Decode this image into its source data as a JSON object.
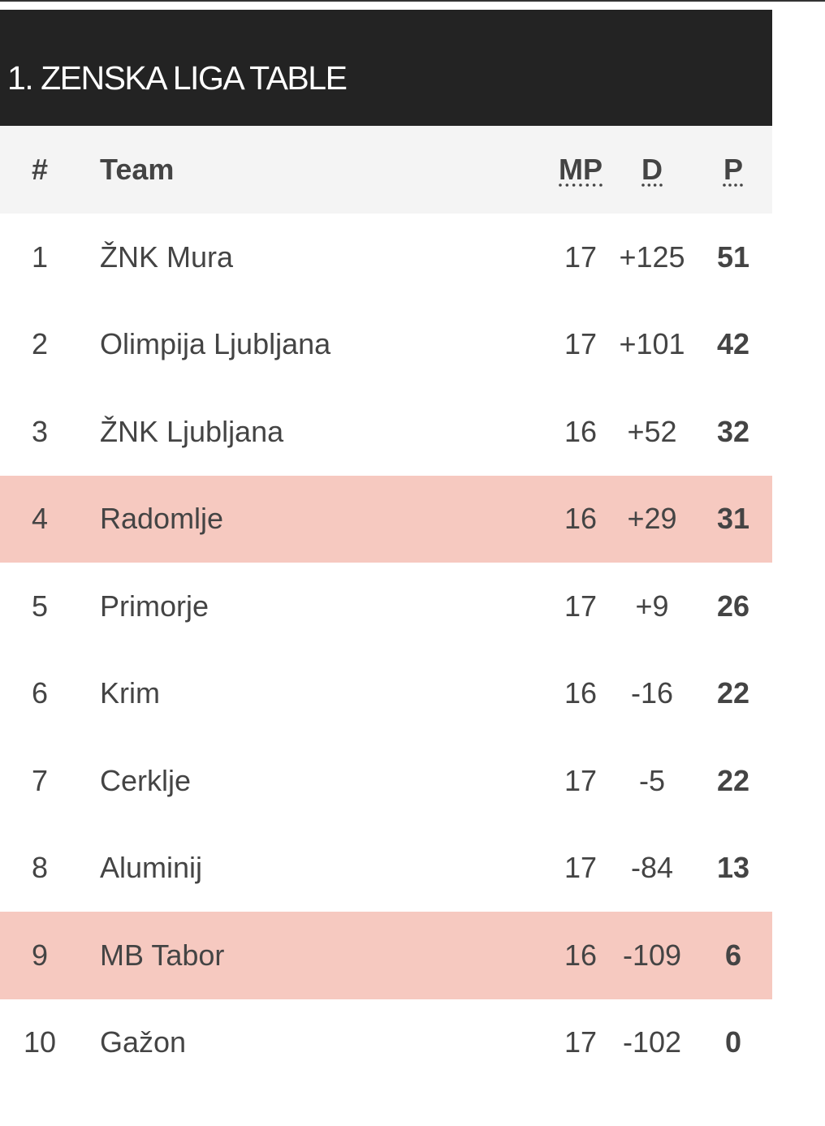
{
  "title": "1. ZENSKA LIGA TABLE",
  "colors": {
    "header_bg": "#232323",
    "column_header_bg": "#f4f4f4",
    "highlight_row": "#f6c9c0",
    "text": "#444444"
  },
  "columns": {
    "pos": "#",
    "team": "Team",
    "mp": "MP",
    "d": "D",
    "p": "P"
  },
  "rows": [
    {
      "pos": "1",
      "team": "ŽNK Mura",
      "mp": "17",
      "d": "+125",
      "p": "51",
      "highlighted": false
    },
    {
      "pos": "2",
      "team": "Olimpija Ljubljana",
      "mp": "17",
      "d": "+101",
      "p": "42",
      "highlighted": false
    },
    {
      "pos": "3",
      "team": "ŽNK Ljubljana",
      "mp": "16",
      "d": "+52",
      "p": "32",
      "highlighted": false
    },
    {
      "pos": "4",
      "team": "Radomlje",
      "mp": "16",
      "d": "+29",
      "p": "31",
      "highlighted": true
    },
    {
      "pos": "5",
      "team": "Primorje",
      "mp": "17",
      "d": "+9",
      "p": "26",
      "highlighted": false
    },
    {
      "pos": "6",
      "team": "Krim",
      "mp": "16",
      "d": "-16",
      "p": "22",
      "highlighted": false
    },
    {
      "pos": "7",
      "team": "Cerklje",
      "mp": "17",
      "d": "-5",
      "p": "22",
      "highlighted": false
    },
    {
      "pos": "8",
      "team": "Aluminij",
      "mp": "17",
      "d": "-84",
      "p": "13",
      "highlighted": false
    },
    {
      "pos": "9",
      "team": "MB Tabor",
      "mp": "16",
      "d": "-109",
      "p": "6",
      "highlighted": true
    },
    {
      "pos": "10",
      "team": "Gažon",
      "mp": "17",
      "d": "-102",
      "p": "0",
      "highlighted": false
    }
  ]
}
